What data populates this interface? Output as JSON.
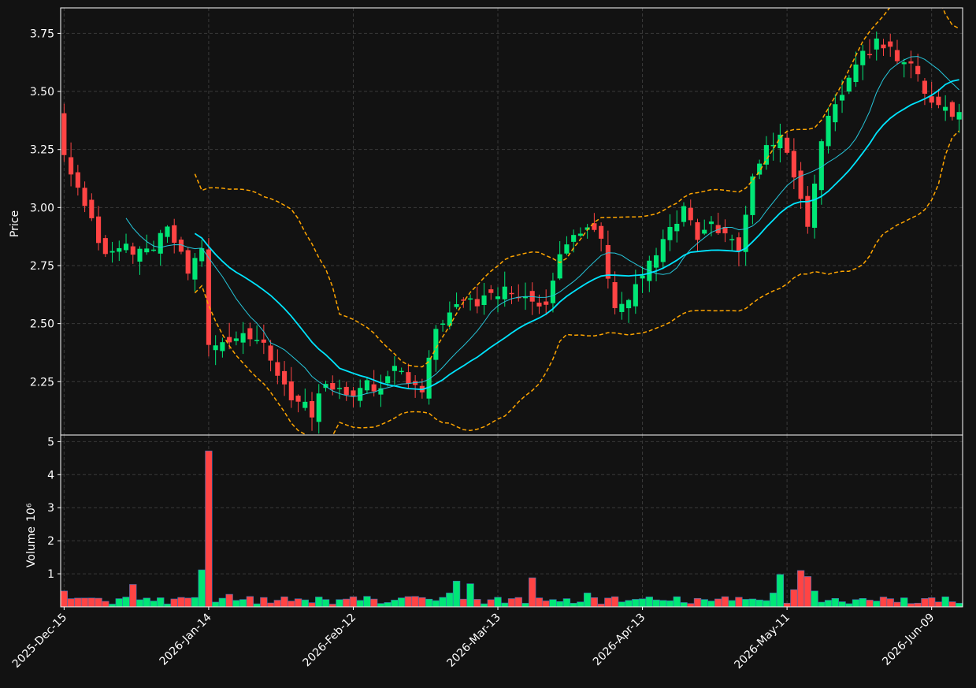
{
  "chart_data": {
    "type": "candlestick",
    "price_panel": {
      "ylabel": "Price",
      "ylim": [
        2.02,
        3.86
      ],
      "yticks": [
        2.25,
        2.5,
        2.75,
        3.0,
        3.25,
        3.5,
        3.75
      ],
      "ytick_labels": [
        "2.25",
        "2.50",
        "2.75",
        "3.00",
        "3.25",
        "3.50",
        "3.75"
      ]
    },
    "volume_panel": {
      "ylabel": "Volume",
      "ylabel_exponent": "10⁶",
      "ylim": [
        0,
        5.2
      ],
      "yticks": [
        1,
        2,
        3,
        4,
        5
      ],
      "ytick_labels": [
        "1",
        "2",
        "3",
        "4",
        "5"
      ]
    },
    "xlim_index": [
      -0.5,
      130.5
    ],
    "xticks": [
      {
        "index": 0,
        "label": "2025-Dec-15"
      },
      {
        "index": 21,
        "label": "2026-Jan-14"
      },
      {
        "index": 42,
        "label": "2026-Feb-12"
      },
      {
        "index": 63,
        "label": "2026-Mar-13"
      },
      {
        "index": 84,
        "label": "2026-Apr-13"
      },
      {
        "index": 105,
        "label": "2026-May-11"
      },
      {
        "index": 126,
        "label": "2026-Jun-09"
      }
    ],
    "grid": true,
    "colors": {
      "background": "#121212",
      "up": "#00e676",
      "down": "#ff4444",
      "grid": "#3a3a3a",
      "ma_fast": "#26c6da",
      "ma_slow": "#00e5ff",
      "bollinger": "#ffa500",
      "text": "#ffffff",
      "volume_edge": "#3b6fb6"
    },
    "close_anchors": [
      [
        0,
        3.25
      ],
      [
        3,
        3.0
      ],
      [
        6,
        2.8
      ],
      [
        9,
        2.83
      ],
      [
        12,
        2.8
      ],
      [
        15,
        2.92
      ],
      [
        18,
        2.72
      ],
      [
        20,
        2.8
      ],
      [
        21,
        2.4
      ],
      [
        23,
        2.42
      ],
      [
        26,
        2.45
      ],
      [
        28,
        2.45
      ],
      [
        31,
        2.3
      ],
      [
        33,
        2.18
      ],
      [
        36,
        2.12
      ],
      [
        38,
        2.25
      ],
      [
        40,
        2.2
      ],
      [
        42,
        2.18
      ],
      [
        44,
        2.25
      ],
      [
        46,
        2.2
      ],
      [
        48,
        2.32
      ],
      [
        50,
        2.25
      ],
      [
        52,
        2.2
      ],
      [
        54,
        2.48
      ],
      [
        56,
        2.55
      ],
      [
        58,
        2.6
      ],
      [
        60,
        2.58
      ],
      [
        62,
        2.62
      ],
      [
        64,
        2.65
      ],
      [
        66,
        2.62
      ],
      [
        68,
        2.58
      ],
      [
        70,
        2.6
      ],
      [
        72,
        2.78
      ],
      [
        74,
        2.88
      ],
      [
        76,
        2.92
      ],
      [
        78,
        2.85
      ],
      [
        80,
        2.55
      ],
      [
        82,
        2.6
      ],
      [
        84,
        2.7
      ],
      [
        86,
        2.8
      ],
      [
        88,
        2.9
      ],
      [
        90,
        3.0
      ],
      [
        92,
        2.88
      ],
      [
        94,
        2.92
      ],
      [
        96,
        2.9
      ],
      [
        98,
        2.8
      ],
      [
        100,
        3.15
      ],
      [
        102,
        3.25
      ],
      [
        104,
        3.3
      ],
      [
        106,
        3.15
      ],
      [
        108,
        2.9
      ],
      [
        110,
        3.3
      ],
      [
        112,
        3.45
      ],
      [
        114,
        3.55
      ],
      [
        116,
        3.65
      ],
      [
        118,
        3.72
      ],
      [
        120,
        3.7
      ],
      [
        121,
        3.65
      ],
      [
        123,
        3.6
      ],
      [
        125,
        3.5
      ],
      [
        127,
        3.42
      ],
      [
        130,
        3.4
      ]
    ],
    "volume_spikes": [
      [
        0,
        0.48
      ],
      [
        10,
        0.68
      ],
      [
        20,
        1.12
      ],
      [
        21,
        4.72
      ],
      [
        24,
        0.38
      ],
      [
        40,
        0.22
      ],
      [
        56,
        0.42
      ],
      [
        57,
        0.78
      ],
      [
        59,
        0.7
      ],
      [
        68,
        0.88
      ],
      [
        76,
        0.42
      ],
      [
        103,
        0.42
      ],
      [
        104,
        0.98
      ],
      [
        106,
        0.52
      ],
      [
        107,
        1.1
      ],
      [
        108,
        0.92
      ],
      [
        109,
        0.48
      ]
    ],
    "indicators": [
      {
        "kind": "moving_average",
        "window": 10,
        "color_key": "ma_fast"
      },
      {
        "kind": "moving_average",
        "window": 20,
        "color_key": "ma_slow"
      },
      {
        "kind": "bollinger_band",
        "window": 20,
        "stdev": 2,
        "color_key": "bollinger"
      }
    ]
  }
}
